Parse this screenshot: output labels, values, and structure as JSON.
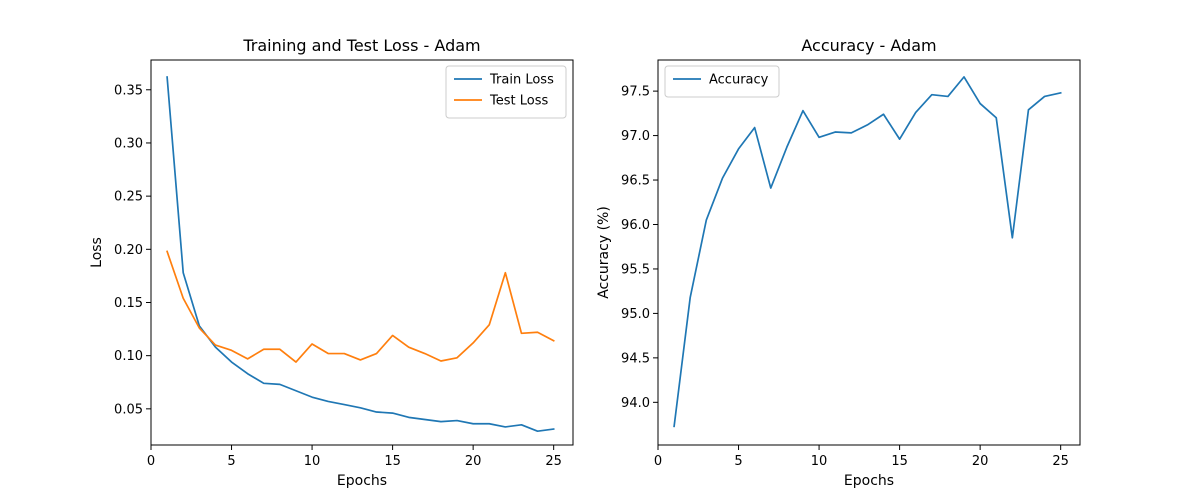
{
  "chart_data": [
    {
      "type": "line",
      "title": "Training and Test Loss - Adam",
      "xlabel": "Epochs",
      "ylabel": "Loss",
      "xlim": [
        0,
        26.2
      ],
      "ylim": [
        0.016,
        0.378
      ],
      "xticks": [
        0,
        5,
        10,
        15,
        20,
        25
      ],
      "yticks": [
        0.05,
        0.1,
        0.15,
        0.2,
        0.25,
        0.3,
        0.35
      ],
      "ytick_labels": [
        "0.05",
        "0.10",
        "0.15",
        "0.20",
        "0.25",
        "0.30",
        "0.35"
      ],
      "grid": false,
      "legend_position": "top-right",
      "x": [
        1,
        2,
        3,
        4,
        5,
        6,
        7,
        8,
        9,
        10,
        11,
        12,
        13,
        14,
        15,
        16,
        17,
        18,
        19,
        20,
        21,
        22,
        23,
        24,
        25
      ],
      "series": [
        {
          "name": "Train Loss",
          "color": "#1f77b4",
          "values": [
            0.362,
            0.178,
            0.128,
            0.108,
            0.094,
            0.083,
            0.074,
            0.073,
            0.067,
            0.061,
            0.057,
            0.054,
            0.051,
            0.047,
            0.046,
            0.042,
            0.04,
            0.038,
            0.039,
            0.036,
            0.036,
            0.033,
            0.035,
            0.029,
            0.031
          ]
        },
        {
          "name": "Test Loss",
          "color": "#ff7f0e",
          "values": [
            0.198,
            0.154,
            0.126,
            0.11,
            0.105,
            0.097,
            0.106,
            0.106,
            0.094,
            0.111,
            0.102,
            0.102,
            0.096,
            0.102,
            0.119,
            0.108,
            0.102,
            0.095,
            0.098,
            0.112,
            0.129,
            0.178,
            0.121,
            0.122,
            0.114
          ]
        }
      ]
    },
    {
      "type": "line",
      "title": "Accuracy - Adam",
      "xlabel": "Epochs",
      "ylabel": "Accuracy (%)",
      "xlim": [
        0,
        26.2
      ],
      "ylim": [
        93.52,
        97.85
      ],
      "xticks": [
        0,
        5,
        10,
        15,
        20,
        25
      ],
      "yticks": [
        94.0,
        94.5,
        95.0,
        95.5,
        96.0,
        96.5,
        97.0,
        97.5
      ],
      "ytick_labels": [
        "94.0",
        "94.5",
        "95.0",
        "95.5",
        "96.0",
        "96.5",
        "97.0",
        "97.5"
      ],
      "grid": false,
      "legend_position": "top-left",
      "x": [
        1,
        2,
        3,
        4,
        5,
        6,
        7,
        8,
        9,
        10,
        11,
        12,
        13,
        14,
        15,
        16,
        17,
        18,
        19,
        20,
        21,
        22,
        23,
        24,
        25
      ],
      "series": [
        {
          "name": "Accuracy",
          "color": "#1f77b4",
          "values": [
            93.73,
            95.18,
            96.05,
            96.52,
            96.85,
            97.09,
            96.41,
            96.87,
            97.28,
            96.98,
            97.04,
            97.03,
            97.12,
            97.24,
            96.96,
            97.26,
            97.46,
            97.44,
            97.66,
            97.36,
            97.2,
            95.85,
            97.29,
            97.44,
            97.48
          ]
        }
      ]
    }
  ]
}
